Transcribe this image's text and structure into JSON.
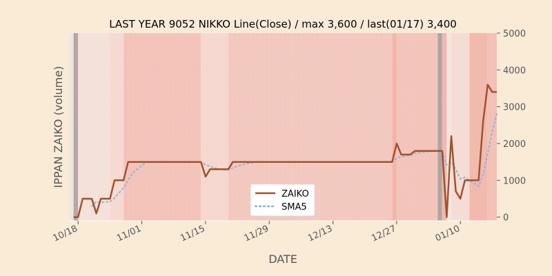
{
  "chart_data": {
    "type": "line",
    "title": "LAST YEAR 9052 NIKKO Line(Close) / max 3,600 / last(01/17) 3,400",
    "xlabel": "DATE",
    "ylabel": "IPPAN ZAIKO (volume)",
    "ylim": [
      -100,
      5000
    ],
    "yticks": [
      0,
      1000,
      2000,
      3000,
      4000,
      5000
    ],
    "y_axis_side": "right",
    "xlim": [
      "2019-10-16",
      "2020-01-18"
    ],
    "xticks": [
      {
        "date": "2019-10-18",
        "label": "10/18"
      },
      {
        "date": "2019-11-01",
        "label": "11/01"
      },
      {
        "date": "2019-11-15",
        "label": "11/15"
      },
      {
        "date": "2019-11-29",
        "label": "11/29"
      },
      {
        "date": "2019-12-13",
        "label": "12/13"
      },
      {
        "date": "2019-12-27",
        "label": "12/27"
      },
      {
        "date": "2020-01-10",
        "label": "01/10"
      }
    ],
    "legend_position": "lower-center",
    "series": [
      {
        "name": "ZAIKO",
        "color": "#a0522d",
        "style": "solid",
        "points": [
          [
            "2019-10-17",
            0
          ],
          [
            "2019-10-18",
            0
          ],
          [
            "2019-10-19",
            500
          ],
          [
            "2019-10-21",
            500
          ],
          [
            "2019-10-22",
            100
          ],
          [
            "2019-10-23",
            500
          ],
          [
            "2019-10-25",
            500
          ],
          [
            "2019-10-26",
            1000
          ],
          [
            "2019-10-28",
            1000
          ],
          [
            "2019-10-29",
            1500
          ],
          [
            "2019-11-14",
            1500
          ],
          [
            "2019-11-15",
            1100
          ],
          [
            "2019-11-16",
            1300
          ],
          [
            "2019-11-20",
            1300
          ],
          [
            "2019-11-21",
            1500
          ],
          [
            "2019-12-26",
            1500
          ],
          [
            "2019-12-27",
            2000
          ],
          [
            "2019-12-28",
            1700
          ],
          [
            "2019-12-30",
            1700
          ],
          [
            "2019-12-31",
            1800
          ],
          [
            "2020-01-06",
            1800
          ],
          [
            "2020-01-07",
            0
          ],
          [
            "2020-01-08",
            2200
          ],
          [
            "2020-01-09",
            700
          ],
          [
            "2020-01-10",
            500
          ],
          [
            "2020-01-11",
            1000
          ],
          [
            "2020-01-14",
            1000
          ],
          [
            "2020-01-15",
            2600
          ],
          [
            "2020-01-16",
            3600
          ],
          [
            "2020-01-17",
            3400
          ],
          [
            "2020-01-18",
            3400
          ]
        ]
      },
      {
        "name": "SMA5",
        "color": "#8fb4d6",
        "style": "dotted",
        "points": [
          [
            "2019-10-21",
            300
          ],
          [
            "2019-10-22",
            420
          ],
          [
            "2019-10-23",
            400
          ],
          [
            "2019-10-25",
            420
          ],
          [
            "2019-10-26",
            520
          ],
          [
            "2019-10-28",
            800
          ],
          [
            "2019-10-29",
            1000
          ],
          [
            "2019-10-30",
            1200
          ],
          [
            "2019-11-01",
            1400
          ],
          [
            "2019-11-02",
            1500
          ],
          [
            "2019-11-14",
            1500
          ],
          [
            "2019-11-15",
            1420
          ],
          [
            "2019-11-16",
            1380
          ],
          [
            "2019-11-18",
            1300
          ],
          [
            "2019-11-20",
            1280
          ],
          [
            "2019-11-21",
            1340
          ],
          [
            "2019-11-23",
            1420
          ],
          [
            "2019-11-26",
            1500
          ],
          [
            "2019-12-26",
            1500
          ],
          [
            "2019-12-27",
            1600
          ],
          [
            "2019-12-28",
            1640
          ],
          [
            "2019-12-30",
            1680
          ],
          [
            "2019-12-31",
            1740
          ],
          [
            "2020-01-03",
            1780
          ],
          [
            "2020-01-06",
            1800
          ],
          [
            "2020-01-07",
            1420
          ],
          [
            "2020-01-08",
            1500
          ],
          [
            "2020-01-09",
            1300
          ],
          [
            "2020-01-10",
            1040
          ],
          [
            "2020-01-11",
            1080
          ],
          [
            "2020-01-14",
            840
          ],
          [
            "2020-01-15",
            1160
          ],
          [
            "2020-01-16",
            1740
          ],
          [
            "2020-01-17",
            2320
          ],
          [
            "2020-01-18",
            2800
          ]
        ]
      }
    ],
    "background_bands": [
      {
        "from": "2019-10-16",
        "to": "2019-10-17",
        "color": "#f1e4e1"
      },
      {
        "from": "2019-10-17",
        "to": "2019-10-18",
        "color": "#b3a8a6"
      },
      {
        "from": "2019-10-18",
        "to": "2019-10-25",
        "color": "#f3e1da"
      },
      {
        "from": "2019-10-25",
        "to": "2019-10-28",
        "color": "#f6d9d0"
      },
      {
        "from": "2019-10-28",
        "to": "2019-11-14",
        "color": "#f3c3b9"
      },
      {
        "from": "2019-11-14",
        "to": "2019-11-20",
        "color": "#f5d7cf"
      },
      {
        "from": "2019-11-20",
        "to": "2019-12-26",
        "color": "#f3c8bf"
      },
      {
        "from": "2019-12-26",
        "to": "2019-12-27",
        "color": "#f1b6aa"
      },
      {
        "from": "2019-12-27",
        "to": "2020-01-05",
        "color": "#f3c4ba"
      },
      {
        "from": "2020-01-05",
        "to": "2020-01-06",
        "color": "#b0a5a3"
      },
      {
        "from": "2020-01-06",
        "to": "2020-01-07",
        "color": "#f1b8ad"
      },
      {
        "from": "2020-01-07",
        "to": "2020-01-08",
        "color": "#f3e6e2"
      },
      {
        "from": "2020-01-08",
        "to": "2020-01-12",
        "color": "#f5dcd5"
      },
      {
        "from": "2020-01-12",
        "to": "2020-01-16",
        "color": "#f2b9ad"
      },
      {
        "from": "2020-01-16",
        "to": "2020-01-18",
        "color": "#f3c0b6"
      }
    ],
    "grid": "vertical-dotted"
  }
}
